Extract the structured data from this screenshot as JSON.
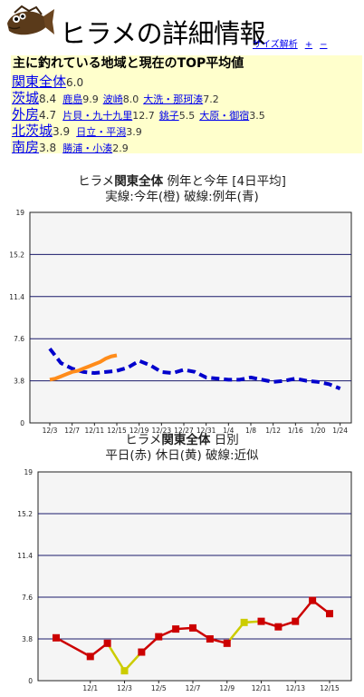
{
  "header": {
    "title": "ヒラメの詳細情報",
    "links": [
      {
        "label": "サイズ解析"
      },
      {
        "label": "+"
      },
      {
        "label": "−"
      }
    ]
  },
  "summary": {
    "heading": "主に釣れている地域と現在のTOP平均値",
    "regions": [
      {
        "name": "関東全体",
        "value": "6.0",
        "spots": []
      },
      {
        "name": "茨城",
        "value": "8.4",
        "spots": [
          {
            "name": "鹿島",
            "value": "9.9"
          },
          {
            "name": "波崎",
            "value": "8.0"
          },
          {
            "name": "大洗・那珂湊",
            "value": "7.2"
          }
        ]
      },
      {
        "name": "外房",
        "value": "4.7",
        "spots": [
          {
            "name": "片貝・九十九里",
            "value": "12.7"
          },
          {
            "name": "銚子",
            "value": "5.5"
          },
          {
            "name": "大原・御宿",
            "value": "3.5"
          }
        ]
      },
      {
        "name": "北茨城",
        "value": "3.9",
        "spots": [
          {
            "name": "日立・平潟",
            "value": "3.9"
          }
        ]
      },
      {
        "name": "南房",
        "value": "3.8",
        "spots": [
          {
            "name": "勝浦・小湊",
            "value": "2.9"
          }
        ]
      }
    ]
  },
  "chart1": {
    "title_pre": "ヒラメ",
    "title_region": "関東全体",
    "title_post": "例年と今年 [4日平均]",
    "subtitle": "実線:今年(橙) 破線:例年(青)",
    "colors": {
      "current": "#ff8c1a",
      "past": "#0000cc",
      "grid": "#1a1a6a",
      "plot_bg": "#f5f5f5"
    }
  },
  "chart2": {
    "title_pre": "ヒラメ",
    "title_region": "関東全体",
    "title_post": "日別",
    "subtitle": "平日(赤) 休日(黄) 破線:近似",
    "colors": {
      "weekday": "#cc0000",
      "holiday": "#cccc00",
      "grid": "#1a1a6a",
      "plot_bg": "#f5f5f5"
    }
  },
  "chart_data": [
    {
      "type": "line",
      "title": "ヒラメ関東全体 例年と今年 [4日平均]",
      "subtitle": "実線:今年(橙) 破線:例年(青)",
      "ylim": [
        0,
        19
      ],
      "yticks": [
        0,
        3.8,
        7.6,
        11.4,
        15.2,
        19
      ],
      "x_labels": [
        "12/3",
        "12/7",
        "12/11",
        "12/15",
        "12/19",
        "12/23",
        "12/27",
        "12/31",
        "1/4",
        "1/8",
        "1/12",
        "1/16",
        "1/20",
        "1/24"
      ],
      "series": [
        {
          "name": "今年",
          "style": "solid",
          "x": [
            "12/3",
            "12/4",
            "12/5",
            "12/6",
            "12/7",
            "12/8",
            "12/9",
            "12/10",
            "12/11",
            "12/12",
            "12/13",
            "12/14",
            "12/15"
          ],
          "values": [
            3.9,
            4.0,
            4.2,
            4.4,
            4.6,
            4.7,
            4.9,
            5.1,
            5.3,
            5.5,
            5.8,
            6.0,
            6.1
          ]
        },
        {
          "name": "例年",
          "style": "dashed",
          "x": [
            "12/3",
            "12/5",
            "12/7",
            "12/9",
            "12/11",
            "12/13",
            "12/15",
            "12/17",
            "12/19",
            "12/21",
            "12/23",
            "12/25",
            "12/27",
            "12/29",
            "12/31",
            "1/2",
            "1/4",
            "1/6",
            "1/8",
            "1/10",
            "1/12",
            "1/14",
            "1/16",
            "1/18",
            "1/20",
            "1/22",
            "1/24"
          ],
          "values": [
            6.7,
            5.4,
            4.9,
            4.6,
            4.5,
            4.6,
            4.7,
            5.0,
            5.6,
            5.2,
            4.6,
            4.5,
            4.8,
            4.6,
            4.1,
            4.0,
            3.9,
            3.9,
            4.1,
            3.9,
            3.7,
            3.8,
            4.0,
            3.8,
            3.7,
            3.5,
            3.1
          ]
        }
      ]
    },
    {
      "type": "line",
      "title": "ヒラメ関東全体 日別",
      "subtitle": "平日(赤) 休日(黄) 破線:近似",
      "ylim": [
        0,
        19
      ],
      "yticks": [
        0,
        3.8,
        7.6,
        11.4,
        15.2,
        19
      ],
      "x_labels": [
        "12/1",
        "12/3",
        "12/5",
        "12/7",
        "12/9",
        "12/11",
        "12/13",
        "12/15"
      ],
      "x": [
        "11/30",
        "12/1",
        "12/2",
        "12/3",
        "12/4",
        "12/5",
        "12/6",
        "12/7",
        "12/8",
        "12/9",
        "12/10",
        "12/11",
        "12/12",
        "12/13",
        "12/14",
        "12/15"
      ],
      "values": [
        3.9,
        2.2,
        3.4,
        0.9,
        2.6,
        4.0,
        4.7,
        4.8,
        3.8,
        3.4,
        5.3,
        5.4,
        4.9,
        5.4,
        7.3,
        6.1
      ],
      "day_type": [
        "weekday",
        "weekday",
        "weekday",
        "holiday",
        "weekday",
        "weekday",
        "weekday",
        "weekday",
        "weekday",
        "weekday",
        "holiday",
        "weekday",
        "weekday",
        "weekday",
        "weekday",
        "weekday"
      ]
    }
  ]
}
